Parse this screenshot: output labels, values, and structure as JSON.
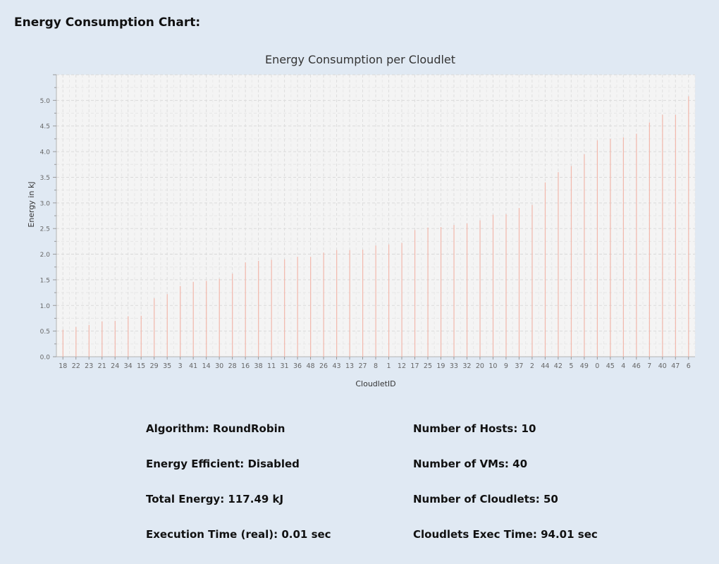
{
  "page": {
    "heading": "Energy Consumption Chart:"
  },
  "stats": {
    "algorithm": "Algorithm: RoundRobin",
    "energy_efficient": "Energy Efficient: Disabled",
    "total_energy": "Total Energy: 117.49 kJ",
    "execution_time": "Execution Time (real): 0.01 sec",
    "hosts": "Number of Hosts: 10",
    "vms": "Number of VMs: 40",
    "cloudlets": "Number of Cloudlets: 50",
    "cloudlets_exec_time": "Cloudlets Exec Time: 94.01 sec"
  },
  "chart_data": {
    "type": "bar",
    "title": "Energy Consumption per Cloudlet",
    "xlabel": "CloudletID",
    "ylabel": "Energy in kJ",
    "ylim": [
      0,
      5.5
    ],
    "yticks": [
      0.0,
      0.5,
      1.0,
      1.5,
      2.0,
      2.5,
      3.0,
      3.5,
      4.0,
      4.5,
      5.0
    ],
    "grid": true,
    "bar_color": "#f2b8ac",
    "plot_background": "#f4f4f4",
    "categories": [
      "18",
      "22",
      "23",
      "21",
      "24",
      "34",
      "15",
      "29",
      "35",
      "3",
      "41",
      "14",
      "30",
      "28",
      "16",
      "38",
      "11",
      "31",
      "36",
      "48",
      "26",
      "43",
      "13",
      "27",
      "8",
      "1",
      "12",
      "17",
      "25",
      "19",
      "33",
      "32",
      "20",
      "10",
      "9",
      "37",
      "2",
      "44",
      "42",
      "5",
      "49",
      "0",
      "45",
      "4",
      "46",
      "7",
      "40",
      "47",
      "6"
    ],
    "values": [
      0.53,
      0.58,
      0.62,
      0.69,
      0.7,
      0.79,
      0.8,
      1.14,
      1.22,
      1.38,
      1.46,
      1.48,
      1.52,
      1.62,
      1.84,
      1.87,
      1.89,
      1.9,
      1.95,
      1.95,
      2.03,
      2.08,
      2.08,
      2.09,
      2.17,
      2.19,
      2.22,
      2.47,
      2.52,
      2.53,
      2.57,
      2.6,
      2.66,
      2.77,
      2.78,
      2.9,
      2.96,
      3.4,
      3.6,
      3.72,
      3.95,
      4.22,
      4.25,
      4.28,
      4.35,
      4.57,
      4.72,
      4.72,
      5.08
    ]
  }
}
